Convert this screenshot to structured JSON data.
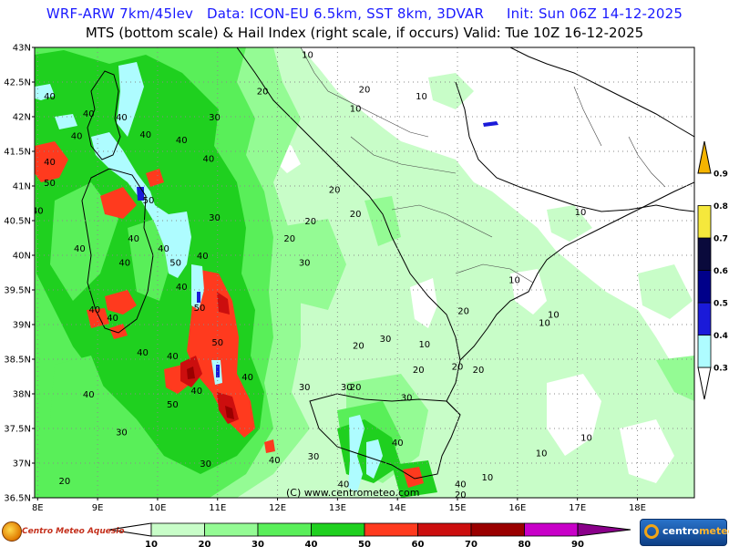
{
  "header": {
    "line1": "WRF-ARW 7km/45lev   Data: ICON-EU 6.5km, SST 8km, 3DVAR     Init: Sun 06Z 14-12-2025",
    "line2": "MTS (bottom scale) & Hail Index (right scale, if occurs) Valid: Tue 10Z 16-12-2025"
  },
  "map": {
    "lat_labels": [
      "43N",
      "42.5N",
      "42N",
      "41.5N",
      "41N",
      "40.5N",
      "40N",
      "39.5N",
      "39N",
      "38.5N",
      "38N",
      "37.5N",
      "37N",
      "36.5N"
    ],
    "lon_labels": [
      "8E",
      "9E",
      "10E",
      "11E",
      "12E",
      "13E",
      "14E",
      "15E",
      "16E",
      "17E",
      "18E"
    ],
    "contour_labels": [
      {
        "text": "10",
        "lon": 12.5,
        "lat": 42.85
      },
      {
        "text": "20",
        "lon": 11.75,
        "lat": 42.32
      },
      {
        "text": "30",
        "lon": 10.95,
        "lat": 41.95
      },
      {
        "text": "40",
        "lon": 8.2,
        "lat": 42.25
      },
      {
        "text": "40",
        "lon": 8.85,
        "lat": 42.0
      },
      {
        "text": "40",
        "lon": 9.4,
        "lat": 41.95
      },
      {
        "text": "40",
        "lon": 9.8,
        "lat": 41.7
      },
      {
        "text": "40",
        "lon": 10.4,
        "lat": 41.62
      },
      {
        "text": "40",
        "lon": 10.85,
        "lat": 41.35
      },
      {
        "text": "40",
        "lon": 8.65,
        "lat": 41.68
      },
      {
        "text": "40",
        "lon": 8.2,
        "lat": 41.3
      },
      {
        "text": "50",
        "lon": 8.2,
        "lat": 41.0
      },
      {
        "text": "40",
        "lon": 8.0,
        "lat": 40.6
      },
      {
        "text": "50",
        "lon": 9.85,
        "lat": 40.75
      },
      {
        "text": "30",
        "lon": 10.95,
        "lat": 40.5
      },
      {
        "text": "40",
        "lon": 9.6,
        "lat": 40.2
      },
      {
        "text": "40",
        "lon": 10.1,
        "lat": 40.05
      },
      {
        "text": "40",
        "lon": 8.7,
        "lat": 40.05
      },
      {
        "text": "40",
        "lon": 9.45,
        "lat": 39.85
      },
      {
        "text": "50",
        "lon": 10.3,
        "lat": 39.85
      },
      {
        "text": "40",
        "lon": 10.75,
        "lat": 39.95
      },
      {
        "text": "40",
        "lon": 10.4,
        "lat": 39.5
      },
      {
        "text": "50",
        "lon": 10.7,
        "lat": 39.2
      },
      {
        "text": "40",
        "lon": 8.95,
        "lat": 39.17
      },
      {
        "text": "40",
        "lon": 9.25,
        "lat": 39.05
      },
      {
        "text": "40",
        "lon": 9.75,
        "lat": 38.55
      },
      {
        "text": "50",
        "lon": 11.0,
        "lat": 38.7
      },
      {
        "text": "40",
        "lon": 10.25,
        "lat": 38.5
      },
      {
        "text": "40",
        "lon": 11.5,
        "lat": 38.2
      },
      {
        "text": "40",
        "lon": 10.65,
        "lat": 38.0
      },
      {
        "text": "50",
        "lon": 10.25,
        "lat": 37.8
      },
      {
        "text": "40",
        "lon": 8.85,
        "lat": 37.95
      },
      {
        "text": "30",
        "lon": 9.4,
        "lat": 37.4
      },
      {
        "text": "30",
        "lon": 10.8,
        "lat": 36.95
      },
      {
        "text": "20",
        "lon": 8.45,
        "lat": 36.7
      },
      {
        "text": "40",
        "lon": 11.95,
        "lat": 37.0
      },
      {
        "text": "40",
        "lon": 14.0,
        "lat": 37.25
      },
      {
        "text": "40",
        "lon": 13.1,
        "lat": 36.65
      },
      {
        "text": "20",
        "lon": 15.05,
        "lat": 36.5
      },
      {
        "text": "30",
        "lon": 12.45,
        "lat": 38.05
      },
      {
        "text": "30",
        "lon": 13.15,
        "lat": 38.05
      },
      {
        "text": "30",
        "lon": 14.15,
        "lat": 37.9
      },
      {
        "text": "30",
        "lon": 12.6,
        "lat": 37.05
      },
      {
        "text": "20",
        "lon": 12.2,
        "lat": 40.2
      },
      {
        "text": "20",
        "lon": 12.55,
        "lat": 40.45
      },
      {
        "text": "20",
        "lon": 13.3,
        "lat": 40.55
      },
      {
        "text": "20",
        "lon": 12.95,
        "lat": 40.9
      },
      {
        "text": "30",
        "lon": 12.45,
        "lat": 39.85
      },
      {
        "text": "20",
        "lon": 13.35,
        "lat": 38.65
      },
      {
        "text": "30",
        "lon": 13.8,
        "lat": 38.75
      },
      {
        "text": "10",
        "lon": 14.45,
        "lat": 38.67
      },
      {
        "text": "20",
        "lon": 14.35,
        "lat": 38.3
      },
      {
        "text": "20",
        "lon": 15.0,
        "lat": 38.35
      },
      {
        "text": "20",
        "lon": 15.35,
        "lat": 38.3
      },
      {
        "text": "20",
        "lon": 15.1,
        "lat": 39.15
      },
      {
        "text": "10",
        "lon": 15.95,
        "lat": 39.6
      },
      {
        "text": "10",
        "lon": 16.6,
        "lat": 39.1
      },
      {
        "text": "10",
        "lon": 16.45,
        "lat": 38.98
      },
      {
        "text": "10",
        "lon": 17.05,
        "lat": 40.58
      },
      {
        "text": "10",
        "lon": 14.4,
        "lat": 42.25
      },
      {
        "text": "10",
        "lon": 13.3,
        "lat": 42.07
      },
      {
        "text": "20",
        "lon": 13.45,
        "lat": 42.35
      },
      {
        "text": "10",
        "lon": 16.4,
        "lat": 37.1
      },
      {
        "text": "10",
        "lon": 17.15,
        "lat": 37.32
      },
      {
        "text": "10",
        "lon": 15.5,
        "lat": 36.75
      },
      {
        "text": "20",
        "lon": 13.3,
        "lat": 38.05
      },
      {
        "text": "40",
        "lon": 15.05,
        "lat": 36.65
      }
    ]
  },
  "copyright": "(C) www.centrometeo.com",
  "bottom_scale": {
    "ticks": [
      "10",
      "20",
      "30",
      "40",
      "50",
      "60",
      "70",
      "80",
      "90"
    ],
    "colors": [
      "#c8fdc8",
      "#94fb94",
      "#59ef59",
      "#1fd01f",
      "#ff3a1e",
      "#cc0e0e",
      "#9a0000",
      "#c800c8",
      "#8a008a"
    ]
  },
  "right_scale": {
    "ticks": [
      "0.3",
      "0.4",
      "0.5",
      "0.6",
      "0.7",
      "0.8",
      "0.9"
    ],
    "colors": [
      "#ffffff",
      "#aefcff",
      "#1a1ad9",
      "#00008a",
      "#0a0a3c",
      "#f5e83c",
      "#f5b400"
    ]
  },
  "branding": {
    "left": "Centro Meteo Aquesio",
    "right_a": "centro",
    "right_b": "meteo"
  }
}
